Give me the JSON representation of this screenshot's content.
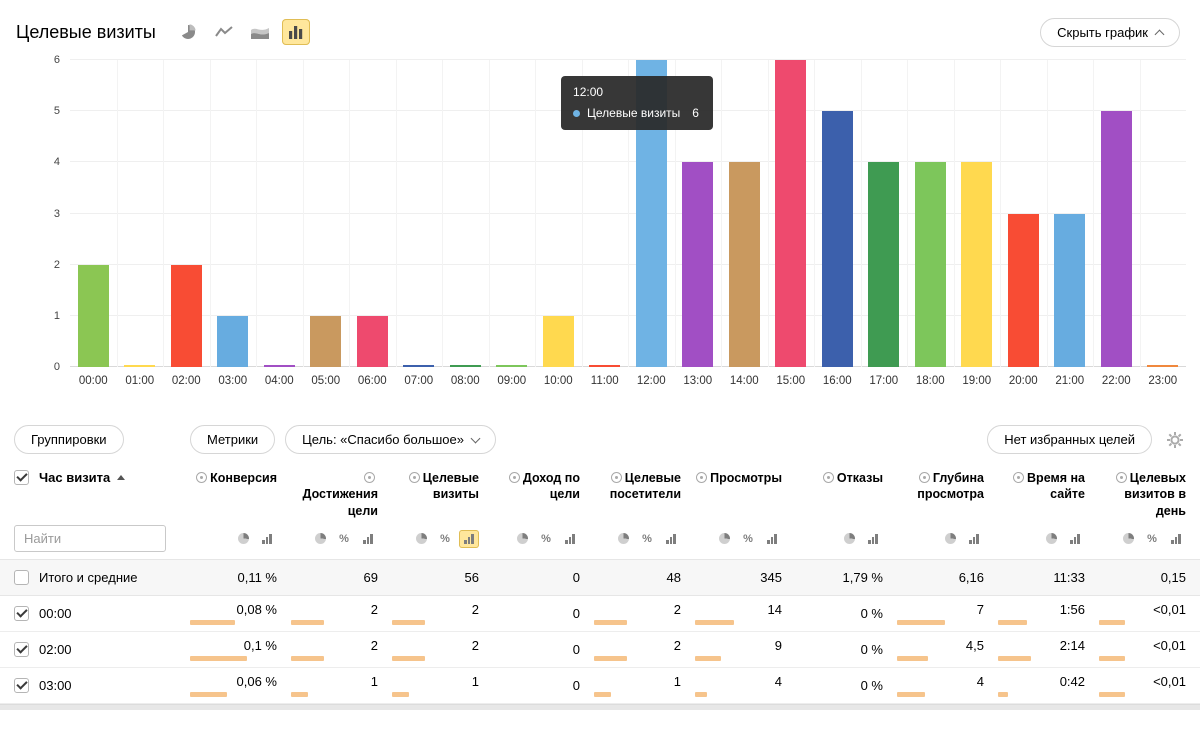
{
  "header": {
    "title": "Целевые визиты",
    "hide_chart_label": "Скрыть график"
  },
  "chart_data": {
    "type": "bar",
    "title": "Целевые визиты",
    "categories": [
      "00:00",
      "01:00",
      "02:00",
      "03:00",
      "04:00",
      "05:00",
      "06:00",
      "07:00",
      "08:00",
      "09:00",
      "10:00",
      "11:00",
      "12:00",
      "13:00",
      "14:00",
      "15:00",
      "16:00",
      "17:00",
      "18:00",
      "19:00",
      "20:00",
      "21:00",
      "22:00",
      "23:00"
    ],
    "values": [
      2,
      0,
      2,
      1,
      0,
      1,
      1,
      0,
      0,
      0,
      1,
      0,
      6,
      4,
      4,
      6,
      5,
      4,
      4,
      4,
      3,
      3,
      5,
      0
    ],
    "bar_colors": [
      "#8bc653",
      "#ffd94f",
      "#f84c34",
      "#67ace0",
      "#a14fc4",
      "#c9995f",
      "#ee4a6e",
      "#3c60ac",
      "#3f9b52",
      "#7dc65b",
      "#ffd94f",
      "#f84c34",
      "#6fb3e4",
      "#a14fc4",
      "#c9995f",
      "#ee4a6e",
      "#3c60ac",
      "#3f9b52",
      "#7dc65b",
      "#ffd94f",
      "#f84c34",
      "#67ace0",
      "#a14fc4",
      "#f0883d"
    ],
    "ylim": [
      0,
      6
    ],
    "yticks": [
      0,
      1,
      2,
      3,
      4,
      5,
      6
    ],
    "grid": true,
    "legend_position": "none",
    "xlabel": "",
    "ylabel": "",
    "tooltip": {
      "title": "12:00",
      "series": "Целевые визиты",
      "value": "6",
      "dot_color": "#6fb3e4"
    }
  },
  "toolbar": {
    "groupings": "Группировки",
    "metrics": "Метрики",
    "goal": "Цель: «Спасибо большое»",
    "no_favorite_goals": "Нет избранных целей"
  },
  "table": {
    "dimension_header": "Час визита",
    "search_placeholder": "Найти",
    "mini_bar_color": "#f6c48c",
    "columns": [
      {
        "label": "Конверсия",
        "toggles": [
          "pie",
          "bars"
        ]
      },
      {
        "label": "Достижения цели",
        "toggles": [
          "pie",
          "percent",
          "bars"
        ]
      },
      {
        "label": "Целевые визиты",
        "toggles": [
          "pie",
          "percent",
          "bars"
        ],
        "active_toggle": "bars"
      },
      {
        "label": "Доход по цели",
        "toggles": [
          "pie",
          "percent",
          "bars"
        ]
      },
      {
        "label": "Целевые посетители",
        "toggles": [
          "pie",
          "percent",
          "bars"
        ]
      },
      {
        "label": "Просмотры",
        "toggles": [
          "pie",
          "percent",
          "bars"
        ]
      },
      {
        "label": "Отказы",
        "toggles": [
          "pie",
          "bars"
        ]
      },
      {
        "label": "Глубина просмотра",
        "toggles": [
          "pie",
          "bars"
        ]
      },
      {
        "label": "Время на сайте",
        "toggles": [
          "pie",
          "bars"
        ]
      },
      {
        "label": "Целевых визитов в день",
        "toggles": [
          "pie",
          "percent",
          "bars"
        ]
      }
    ],
    "totals_row": {
      "label": "Итого и средние",
      "values": [
        "0,11 %",
        "69",
        "56",
        "0",
        "48",
        "345",
        "1,79 %",
        "6,16",
        "11:33",
        "0,15"
      ]
    },
    "rows": [
      {
        "label": "00:00",
        "checked": true,
        "values": [
          "0,08 %",
          "2",
          "2",
          "0",
          "2",
          "14",
          "0 %",
          "7",
          "1:56",
          "<0,01"
        ],
        "bars": [
          0.52,
          0.38,
          0.38,
          0,
          0.38,
          0.45,
          0,
          0.55,
          0.33,
          0.3
        ]
      },
      {
        "label": "02:00",
        "checked": true,
        "values": [
          "0,1 %",
          "2",
          "2",
          "0",
          "2",
          "9",
          "0 %",
          "4,5",
          "2:14",
          "<0,01"
        ],
        "bars": [
          0.66,
          0.38,
          0.38,
          0,
          0.38,
          0.3,
          0,
          0.36,
          0.38,
          0.3
        ]
      },
      {
        "label": "03:00",
        "checked": true,
        "values": [
          "0,06 %",
          "1",
          "1",
          "0",
          "1",
          "4",
          "0 %",
          "4",
          "0:42",
          "<0,01"
        ],
        "bars": [
          0.42,
          0.19,
          0.19,
          0,
          0.19,
          0.14,
          0,
          0.32,
          0.12,
          0.3
        ]
      }
    ]
  }
}
